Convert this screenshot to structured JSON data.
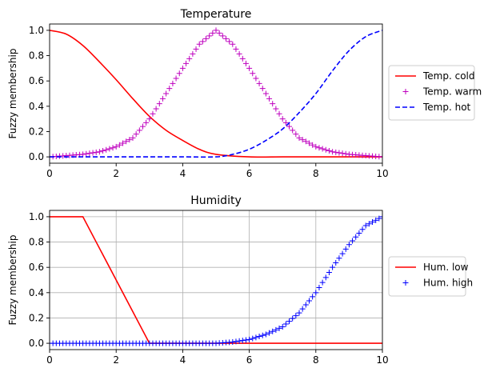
{
  "chart_data": [
    {
      "type": "line",
      "title": "Temperature",
      "xlabel": "",
      "ylabel": "Fuzzy membership",
      "xlim": [
        0,
        10
      ],
      "ylim": [
        -0.05,
        1.05
      ],
      "xticks": [
        "0",
        "2",
        "4",
        "6",
        "8",
        "10"
      ],
      "yticks": [
        "0.0",
        "0.2",
        "0.4",
        "0.6",
        "0.8",
        "1.0"
      ],
      "grid": false,
      "legend_position": "right-outside",
      "series": [
        {
          "name": "Temp. cold",
          "style": "solid",
          "color": "#ff0000",
          "x": [
            0,
            0.5,
            1,
            1.5,
            2,
            2.5,
            3,
            3.5,
            4,
            4.5,
            5,
            6,
            7,
            8,
            9,
            10
          ],
          "y": [
            1.0,
            0.97,
            0.88,
            0.75,
            0.61,
            0.46,
            0.32,
            0.21,
            0.13,
            0.06,
            0.02,
            0.0,
            0.0,
            0.0,
            0.0,
            0.0
          ]
        },
        {
          "name": "Temp. warm",
          "style": "markers",
          "marker": "+",
          "color": "#bf00bf",
          "x": [
            0,
            0.5,
            1,
            1.5,
            2,
            2.5,
            3,
            3.5,
            4,
            4.5,
            5,
            5.5,
            6,
            6.5,
            7,
            7.5,
            8,
            8.5,
            9,
            9.5,
            10
          ],
          "y": [
            0.0,
            0.01,
            0.02,
            0.04,
            0.08,
            0.15,
            0.3,
            0.5,
            0.7,
            0.89,
            1.0,
            0.89,
            0.7,
            0.5,
            0.3,
            0.15,
            0.08,
            0.04,
            0.02,
            0.01,
            0.0
          ]
        },
        {
          "name": "Temp. hot",
          "style": "dashed",
          "color": "#0000ff",
          "x": [
            0,
            1,
            2,
            3,
            4,
            5,
            5.5,
            6,
            6.5,
            7,
            7.5,
            8,
            8.5,
            9,
            9.5,
            10
          ],
          "y": [
            0.0,
            0.0,
            0.0,
            0.0,
            0.0,
            0.0,
            0.02,
            0.06,
            0.13,
            0.22,
            0.35,
            0.5,
            0.68,
            0.84,
            0.95,
            1.0
          ]
        }
      ]
    },
    {
      "type": "line",
      "title": "Humidity",
      "xlabel": "",
      "ylabel": "Fuzzy membership",
      "xlim": [
        0,
        10
      ],
      "ylim": [
        -0.05,
        1.05
      ],
      "xticks": [
        "0",
        "2",
        "4",
        "6",
        "8",
        "10"
      ],
      "yticks": [
        "0.0",
        "0.2",
        "0.4",
        "0.6",
        "0.8",
        "1.0"
      ],
      "grid": true,
      "legend_position": "right-outside",
      "series": [
        {
          "name": "Hum. low",
          "style": "solid",
          "color": "#ff0000",
          "x": [
            0,
            1,
            3,
            10
          ],
          "y": [
            1.0,
            1.0,
            0.0,
            0.0
          ]
        },
        {
          "name": "Hum. high",
          "style": "markers",
          "marker": "+",
          "color": "#0000ff",
          "x": [
            0,
            1,
            2,
            3,
            4,
            5,
            5.5,
            6,
            6.5,
            7,
            7.5,
            8,
            8.5,
            9,
            9.5,
            10
          ],
          "y": [
            0.0,
            0.0,
            0.0,
            0.0,
            0.0,
            0.0,
            0.01,
            0.03,
            0.07,
            0.13,
            0.24,
            0.4,
            0.6,
            0.78,
            0.93,
            1.0
          ]
        }
      ]
    }
  ]
}
